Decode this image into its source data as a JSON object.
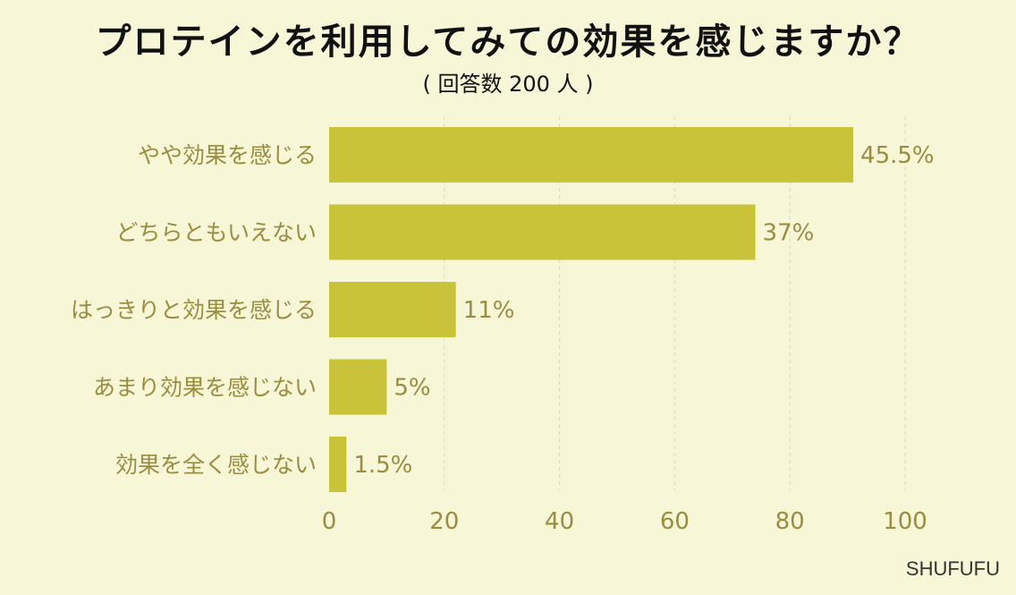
{
  "title": "プロテインを利用してみての効果を感じますか？",
  "subtitle": "( 回答数 200 人 )",
  "source": "SHUFUFU",
  "colors": {
    "background": "#f7f6d7",
    "bar": "#c9c33a",
    "label_text": "#9a8d3f",
    "grid": "#dcdab8"
  },
  "chart_data": {
    "type": "bar",
    "orientation": "horizontal",
    "categories": [
      "やや効果を感じる",
      "どちらともいえない",
      "はっきりと効果を感じる",
      "あまり効果を感じない",
      "効果を全く感じない"
    ],
    "values": [
      45.5,
      37,
      11,
      5,
      1.5
    ],
    "value_labels": [
      "45.5%",
      "37%",
      "11%",
      "5%",
      "1.5%"
    ],
    "xlim": [
      0,
      100
    ],
    "xticks": [
      0,
      20,
      40,
      60,
      80,
      100
    ],
    "grid": true
  }
}
